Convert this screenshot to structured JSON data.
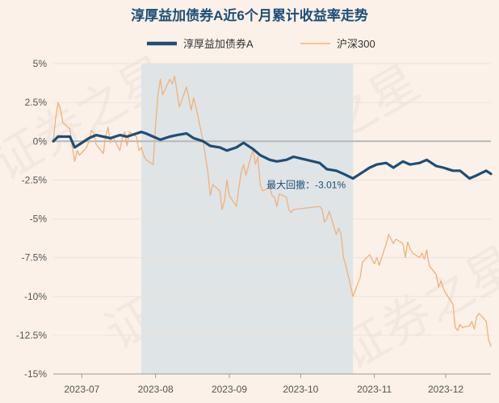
{
  "chart_data": {
    "type": "line",
    "title": "淳厚益加债券A近6个月累计收益率走势",
    "watermark": "证券之星",
    "x_ticks": [
      "2023-07",
      "2023-08",
      "2023-09",
      "2023-10",
      "2023-11",
      "2023-12"
    ],
    "y_ticks": [
      "5%",
      "2.5%",
      "0%",
      "-2.5%",
      "-5%",
      "-7.5%",
      "-10%",
      "-12.5%",
      "-15%"
    ],
    "ylim": [
      -15,
      5
    ],
    "grid": "horizontal",
    "legend_position": "top-center",
    "annotation": {
      "label": "最大回撤：-3.01%"
    },
    "drawdown_range": {
      "start": "2023-07-26",
      "end": "2023-10-23"
    },
    "colors": {
      "fund": "#1d4e79",
      "index": "#f0b27a",
      "shade": "#dfe4e6",
      "background": "#fbf1e8",
      "zero_line": "#b8b8b8"
    },
    "series": [
      {
        "name": "淳厚益加债券A",
        "points": [
          [
            "2023-06-19",
            0.0
          ],
          [
            "2023-06-21",
            0.3
          ],
          [
            "2023-06-23",
            0.3
          ],
          [
            "2023-06-26",
            0.3
          ],
          [
            "2023-06-28",
            -0.4
          ],
          [
            "2023-06-30",
            -0.2
          ],
          [
            "2023-07-04",
            0.2
          ],
          [
            "2023-07-07",
            0.4
          ],
          [
            "2023-07-10",
            0.3
          ],
          [
            "2023-07-13",
            0.2
          ],
          [
            "2023-07-17",
            0.4
          ],
          [
            "2023-07-20",
            0.3
          ],
          [
            "2023-07-24",
            0.5
          ],
          [
            "2023-07-26",
            0.6
          ],
          [
            "2023-07-28",
            0.5
          ],
          [
            "2023-07-31",
            0.3
          ],
          [
            "2023-08-03",
            0.1
          ],
          [
            "2023-08-07",
            0.3
          ],
          [
            "2023-08-10",
            0.4
          ],
          [
            "2023-08-14",
            0.5
          ],
          [
            "2023-08-17",
            0.2
          ],
          [
            "2023-08-21",
            0.0
          ],
          [
            "2023-08-24",
            -0.3
          ],
          [
            "2023-08-28",
            -0.4
          ],
          [
            "2023-08-31",
            -0.6
          ],
          [
            "2023-09-04",
            -0.4
          ],
          [
            "2023-09-07",
            -0.1
          ],
          [
            "2023-09-11",
            -0.5
          ],
          [
            "2023-09-14",
            -0.9
          ],
          [
            "2023-09-18",
            -1.2
          ],
          [
            "2023-09-21",
            -1.3
          ],
          [
            "2023-09-25",
            -1.2
          ],
          [
            "2023-09-28",
            -1.0
          ],
          [
            "2023-10-09",
            -1.4
          ],
          [
            "2023-10-12",
            -1.8
          ],
          [
            "2023-10-16",
            -1.9
          ],
          [
            "2023-10-19",
            -2.1
          ],
          [
            "2023-10-23",
            -2.4
          ],
          [
            "2023-10-26",
            -2.1
          ],
          [
            "2023-10-30",
            -1.7
          ],
          [
            "2023-11-02",
            -1.5
          ],
          [
            "2023-11-06",
            -1.4
          ],
          [
            "2023-11-09",
            -1.7
          ],
          [
            "2023-11-13",
            -1.3
          ],
          [
            "2023-11-16",
            -1.5
          ],
          [
            "2023-11-20",
            -1.4
          ],
          [
            "2023-11-23",
            -1.2
          ],
          [
            "2023-11-27",
            -1.6
          ],
          [
            "2023-11-30",
            -1.7
          ],
          [
            "2023-12-04",
            -1.9
          ],
          [
            "2023-12-07",
            -1.9
          ],
          [
            "2023-12-11",
            -2.4
          ],
          [
            "2023-12-14",
            -2.2
          ],
          [
            "2023-12-18",
            -1.9
          ],
          [
            "2023-12-20",
            -2.1
          ]
        ]
      },
      {
        "name": "沪深300",
        "points": [
          [
            "2023-06-19",
            0.0
          ],
          [
            "2023-06-20",
            1.5
          ],
          [
            "2023-06-21",
            2.5
          ],
          [
            "2023-06-22",
            2.1
          ],
          [
            "2023-06-23",
            1.2
          ],
          [
            "2023-06-26",
            0.8
          ],
          [
            "2023-06-27",
            -0.4
          ],
          [
            "2023-06-28",
            -1.3
          ],
          [
            "2023-06-29",
            -0.6
          ],
          [
            "2023-06-30",
            -0.9
          ],
          [
            "2023-07-03",
            -0.4
          ],
          [
            "2023-07-04",
            0.0
          ],
          [
            "2023-07-05",
            0.7
          ],
          [
            "2023-07-06",
            0.5
          ],
          [
            "2023-07-07",
            -0.2
          ],
          [
            "2023-07-10",
            -0.8
          ],
          [
            "2023-07-11",
            0.3
          ],
          [
            "2023-07-12",
            0.9
          ],
          [
            "2023-07-13",
            -0.1
          ],
          [
            "2023-07-14",
            0.3
          ],
          [
            "2023-07-17",
            -0.6
          ],
          [
            "2023-07-18",
            0.2
          ],
          [
            "2023-07-19",
            0.6
          ],
          [
            "2023-07-20",
            -0.3
          ],
          [
            "2023-07-21",
            0.6
          ],
          [
            "2023-07-24",
            0.3
          ],
          [
            "2023-07-25",
            -0.6
          ],
          [
            "2023-07-26",
            -0.4
          ],
          [
            "2023-07-27",
            -0.9
          ],
          [
            "2023-07-28",
            -1.2
          ],
          [
            "2023-07-31",
            -1.5
          ],
          [
            "2023-08-01",
            1.0
          ],
          [
            "2023-08-02",
            3.0
          ],
          [
            "2023-08-03",
            4.0
          ],
          [
            "2023-08-04",
            3.0
          ],
          [
            "2023-08-07",
            4.0
          ],
          [
            "2023-08-08",
            3.7
          ],
          [
            "2023-08-09",
            4.2
          ],
          [
            "2023-08-10",
            3.2
          ],
          [
            "2023-08-11",
            2.2
          ],
          [
            "2023-08-14",
            3.5
          ],
          [
            "2023-08-15",
            2.8
          ],
          [
            "2023-08-16",
            2.0
          ],
          [
            "2023-08-17",
            2.8
          ],
          [
            "2023-08-18",
            2.2
          ],
          [
            "2023-08-21",
            0.0
          ],
          [
            "2023-08-22",
            -1.0
          ],
          [
            "2023-08-23",
            -2.0
          ],
          [
            "2023-08-24",
            -3.5
          ],
          [
            "2023-08-25",
            -2.8
          ],
          [
            "2023-08-28",
            -3.2
          ],
          [
            "2023-08-29",
            -4.4
          ],
          [
            "2023-08-30",
            -3.8
          ],
          [
            "2023-08-31",
            -2.5
          ],
          [
            "2023-09-01",
            -3.5
          ],
          [
            "2023-09-04",
            -4.2
          ],
          [
            "2023-09-05",
            -3.0
          ],
          [
            "2023-09-06",
            -2.0
          ],
          [
            "2023-09-07",
            -1.5
          ],
          [
            "2023-09-08",
            -2.2
          ],
          [
            "2023-09-11",
            -0.5
          ],
          [
            "2023-09-12",
            -1.5
          ],
          [
            "2023-09-13",
            -1.0
          ],
          [
            "2023-09-14",
            -2.8
          ],
          [
            "2023-09-15",
            -3.2
          ],
          [
            "2023-09-18",
            -3.0
          ],
          [
            "2023-09-19",
            -3.5
          ],
          [
            "2023-09-20",
            -3.6
          ],
          [
            "2023-09-21",
            -4.2
          ],
          [
            "2023-09-22",
            -3.4
          ],
          [
            "2023-09-25",
            -3.6
          ],
          [
            "2023-09-26",
            -4.4
          ],
          [
            "2023-09-27",
            -4.6
          ],
          [
            "2023-09-28",
            -4.4
          ],
          [
            "2023-10-09",
            -4.2
          ],
          [
            "2023-10-10",
            -4.4
          ],
          [
            "2023-10-11",
            -5.2
          ],
          [
            "2023-10-12",
            -5.0
          ],
          [
            "2023-10-13",
            -4.5
          ],
          [
            "2023-10-16",
            -6.0
          ],
          [
            "2023-10-17",
            -5.6
          ],
          [
            "2023-10-18",
            -6.0
          ],
          [
            "2023-10-19",
            -7.5
          ],
          [
            "2023-10-20",
            -8.0
          ],
          [
            "2023-10-23",
            -10.0
          ],
          [
            "2023-10-24",
            -9.6
          ],
          [
            "2023-10-25",
            -9.2
          ],
          [
            "2023-10-26",
            -8.8
          ],
          [
            "2023-10-27",
            -7.8
          ],
          [
            "2023-10-30",
            -7.3
          ],
          [
            "2023-10-31",
            -7.6
          ],
          [
            "2023-11-01",
            -7.9
          ],
          [
            "2023-11-02",
            -7.5
          ],
          [
            "2023-11-03",
            -8.0
          ],
          [
            "2023-11-06",
            -6.6
          ],
          [
            "2023-11-07",
            -6.0
          ],
          [
            "2023-11-08",
            -6.3
          ],
          [
            "2023-11-09",
            -6.6
          ],
          [
            "2023-11-10",
            -6.3
          ],
          [
            "2023-11-13",
            -6.6
          ],
          [
            "2023-11-14",
            -7.5
          ],
          [
            "2023-11-15",
            -6.5
          ],
          [
            "2023-11-16",
            -6.9
          ],
          [
            "2023-11-17",
            -7.2
          ],
          [
            "2023-11-20",
            -7.5
          ],
          [
            "2023-11-21",
            -7.2
          ],
          [
            "2023-11-22",
            -7.6
          ],
          [
            "2023-11-23",
            -7.0
          ],
          [
            "2023-11-24",
            -8.0
          ],
          [
            "2023-11-27",
            -8.6
          ],
          [
            "2023-11-28",
            -9.4
          ],
          [
            "2023-11-29",
            -9.0
          ],
          [
            "2023-11-30",
            -9.5
          ],
          [
            "2023-12-01",
            -9.8
          ],
          [
            "2023-12-04",
            -10.5
          ],
          [
            "2023-12-05",
            -12.0
          ],
          [
            "2023-12-06",
            -12.2
          ],
          [
            "2023-12-07",
            -11.8
          ],
          [
            "2023-12-08",
            -12.0
          ],
          [
            "2023-12-11",
            -11.9
          ],
          [
            "2023-12-12",
            -11.6
          ],
          [
            "2023-12-13",
            -12.1
          ],
          [
            "2023-12-14",
            -11.3
          ],
          [
            "2023-12-15",
            -11.1
          ],
          [
            "2023-12-18",
            -11.6
          ],
          [
            "2023-12-19",
            -12.8
          ],
          [
            "2023-12-20",
            -13.2
          ]
        ]
      }
    ]
  }
}
